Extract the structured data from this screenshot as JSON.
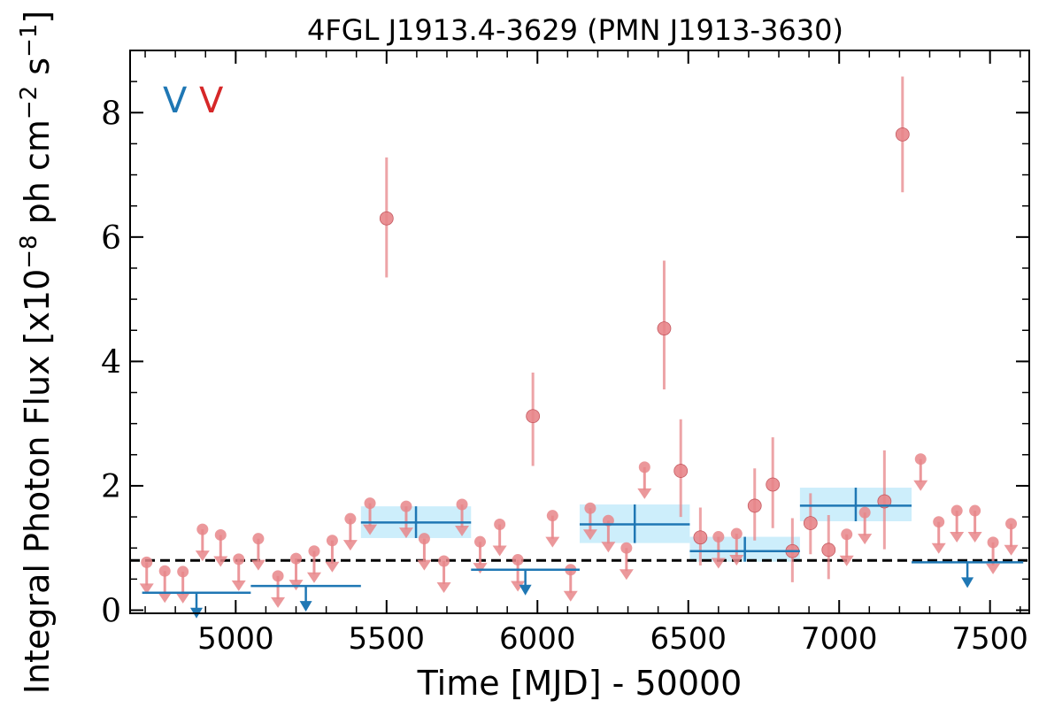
{
  "chart_data": {
    "type": "scatter",
    "title": "4FGL J1913.4-3629 (PMN J1913-3630)",
    "xlabel": "Time [MJD] - 50000",
    "ylabel": "Integral Photon Flux [x10",
    "ylabel_exp1": "−8",
    "ylabel_mid": " ph cm",
    "ylabel_exp2": "−2",
    "ylabel_mid2": " s",
    "ylabel_exp3": "−1",
    "ylabel_end": "]",
    "xlim": [
      4650,
      7630
    ],
    "ylim": [
      -0.05,
      9.0
    ],
    "x_ticks": [
      5000,
      5500,
      6000,
      6500,
      7000,
      7500
    ],
    "x_tick_labels": [
      "5000",
      "5500",
      "6000",
      "6500",
      "7000",
      "7500"
    ],
    "y_ticks": [
      0,
      2,
      4,
      6,
      8
    ],
    "y_tick_labels": [
      "0",
      "2",
      "4",
      "6",
      "8"
    ],
    "grid": false,
    "legend_letters": [
      {
        "text": "V",
        "color": "#1f77b4"
      },
      {
        "text": "V",
        "color": "#d62728"
      }
    ],
    "reference_line": {
      "y": 0.8,
      "style": "dashed",
      "color": "#000000"
    },
    "colors": {
      "blue": "#1f77b4",
      "red": "#e8868a",
      "band": "#c8ecfb"
    },
    "series": [
      {
        "marker": "circle-with-error",
        "color": "#e8868a",
        "points": [
          {
            "x": 5500,
            "y": 6.3,
            "lo": 5.35,
            "hi": 7.28
          },
          {
            "x": 5985,
            "y": 3.12,
            "lo": 2.32,
            "hi": 3.82
          },
          {
            "x": 6420,
            "y": 4.53,
            "lo": 3.55,
            "hi": 5.62
          },
          {
            "x": 6475,
            "y": 2.24,
            "lo": 1.5,
            "hi": 3.07
          },
          {
            "x": 6540,
            "y": 1.17,
            "lo": 0.72,
            "hi": 1.65
          },
          {
            "x": 6720,
            "y": 1.68,
            "lo": 1.12,
            "hi": 2.28
          },
          {
            "x": 6780,
            "y": 2.02,
            "lo": 1.32,
            "hi": 2.78
          },
          {
            "x": 6845,
            "y": 0.95,
            "lo": 0.45,
            "hi": 1.48
          },
          {
            "x": 6905,
            "y": 1.4,
            "lo": 0.9,
            "hi": 1.88
          },
          {
            "x": 6965,
            "y": 0.97,
            "lo": 0.5,
            "hi": 1.53
          },
          {
            "x": 7150,
            "y": 1.75,
            "lo": 0.98,
            "hi": 2.57
          },
          {
            "x": 7210,
            "y": 7.65,
            "lo": 6.72,
            "hi": 8.58
          }
        ]
      },
      {
        "marker": "upper-limit",
        "color": "#e8868a",
        "points": [
          {
            "x": 4705,
            "y": 0.77
          },
          {
            "x": 4765,
            "y": 0.63
          },
          {
            "x": 4825,
            "y": 0.62
          },
          {
            "x": 4890,
            "y": 1.3
          },
          {
            "x": 4950,
            "y": 1.21
          },
          {
            "x": 5010,
            "y": 0.82
          },
          {
            "x": 5075,
            "y": 1.15
          },
          {
            "x": 5140,
            "y": 0.55
          },
          {
            "x": 5200,
            "y": 0.83
          },
          {
            "x": 5260,
            "y": 0.95
          },
          {
            "x": 5320,
            "y": 1.12
          },
          {
            "x": 5380,
            "y": 1.47
          },
          {
            "x": 5445,
            "y": 1.72
          },
          {
            "x": 5565,
            "y": 1.67
          },
          {
            "x": 5625,
            "y": 1.15
          },
          {
            "x": 5690,
            "y": 0.79
          },
          {
            "x": 5750,
            "y": 1.7
          },
          {
            "x": 5810,
            "y": 1.1
          },
          {
            "x": 5875,
            "y": 1.38
          },
          {
            "x": 5935,
            "y": 0.81
          },
          {
            "x": 6050,
            "y": 1.52
          },
          {
            "x": 6110,
            "y": 0.65
          },
          {
            "x": 6175,
            "y": 1.64
          },
          {
            "x": 6235,
            "y": 1.44
          },
          {
            "x": 6295,
            "y": 1.0
          },
          {
            "x": 6355,
            "y": 2.3
          },
          {
            "x": 6600,
            "y": 1.18
          },
          {
            "x": 6660,
            "y": 1.23
          },
          {
            "x": 7025,
            "y": 1.22
          },
          {
            "x": 7085,
            "y": 1.57
          },
          {
            "x": 7270,
            "y": 2.43
          },
          {
            "x": 7330,
            "y": 1.42
          },
          {
            "x": 7390,
            "y": 1.6
          },
          {
            "x": 7450,
            "y": 1.6
          },
          {
            "x": 7510,
            "y": 1.09
          },
          {
            "x": 7570,
            "y": 1.39
          }
        ]
      },
      {
        "marker": "binned-detection",
        "color": "#1f77b4",
        "points": [
          {
            "x0": 5415,
            "x1": 5780,
            "y": 1.41,
            "lo": 1.16,
            "hi": 1.67
          },
          {
            "x0": 6140,
            "x1": 6505,
            "y": 1.38,
            "lo": 1.08,
            "hi": 1.7
          },
          {
            "x0": 6505,
            "x1": 6870,
            "y": 0.95,
            "lo": 0.78,
            "hi": 1.18
          },
          {
            "x0": 6870,
            "x1": 7240,
            "y": 1.68,
            "lo": 1.43,
            "hi": 1.97
          }
        ]
      },
      {
        "marker": "binned-upper-limit",
        "color": "#1f77b4",
        "points": [
          {
            "x0": 4690,
            "x1": 5050,
            "y": 0.28
          },
          {
            "x0": 5050,
            "x1": 5415,
            "y": 0.39
          },
          {
            "x0": 5780,
            "x1": 6140,
            "y": 0.65
          },
          {
            "x0": 7240,
            "x1": 7610,
            "y": 0.77
          }
        ]
      }
    ]
  }
}
